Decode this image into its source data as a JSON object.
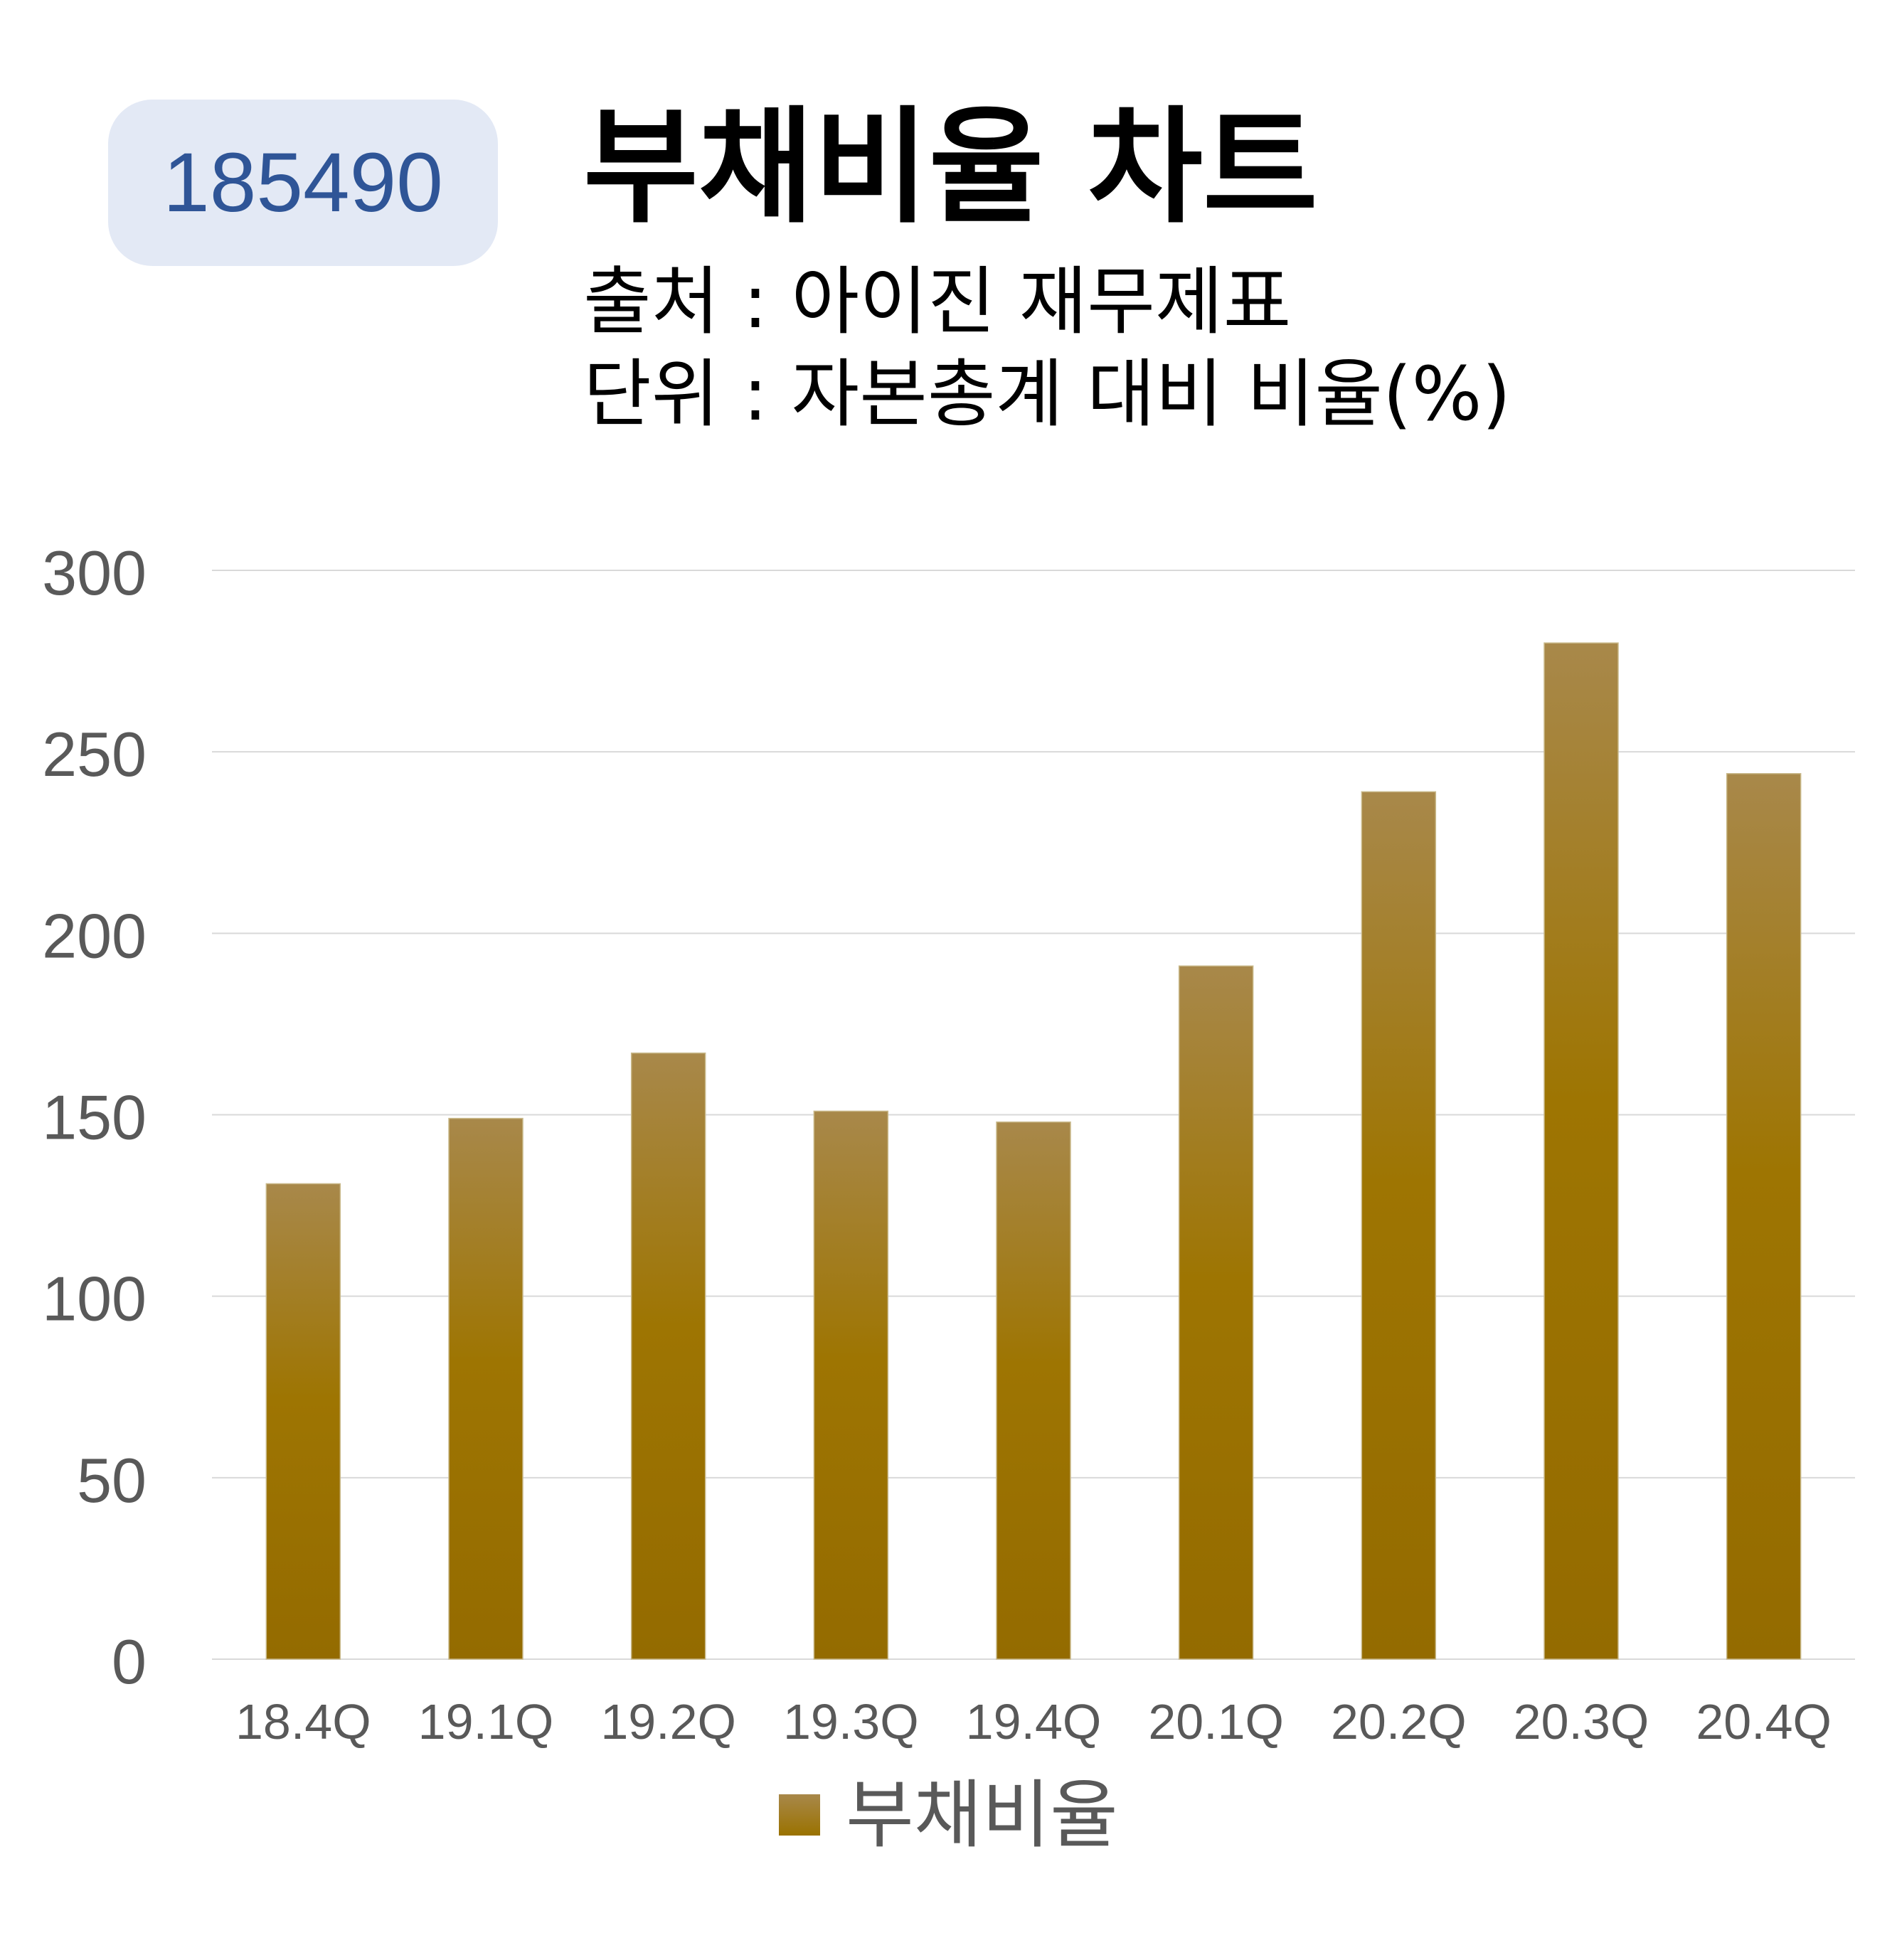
{
  "header": {
    "code": "185490",
    "title": "부채비율 차트",
    "source": "출처 : 아이진 재무제표",
    "unit": "단위 : 자본총계 대비 비율(%)"
  },
  "colors": {
    "bar_top": "#a8884a",
    "bar_bottom": "#946b00",
    "grid": "#d9d9d9",
    "tick_text": "#595959",
    "badge_bg": "#e3e9f5",
    "badge_text": "#2f5597"
  },
  "chart_data": {
    "type": "bar",
    "categories": [
      "18.4Q",
      "19.1Q",
      "19.2Q",
      "19.3Q",
      "19.4Q",
      "20.1Q",
      "20.2Q",
      "20.3Q",
      "20.4Q"
    ],
    "series": [
      {
        "name": "부채비율",
        "values": [
          131,
          149,
          167,
          151,
          148,
          191,
          239,
          280,
          244
        ]
      }
    ],
    "ylim": [
      0,
      300
    ],
    "yticks": [
      0,
      50,
      100,
      150,
      200,
      250,
      300
    ],
    "grid": true,
    "legend": "bottom"
  }
}
